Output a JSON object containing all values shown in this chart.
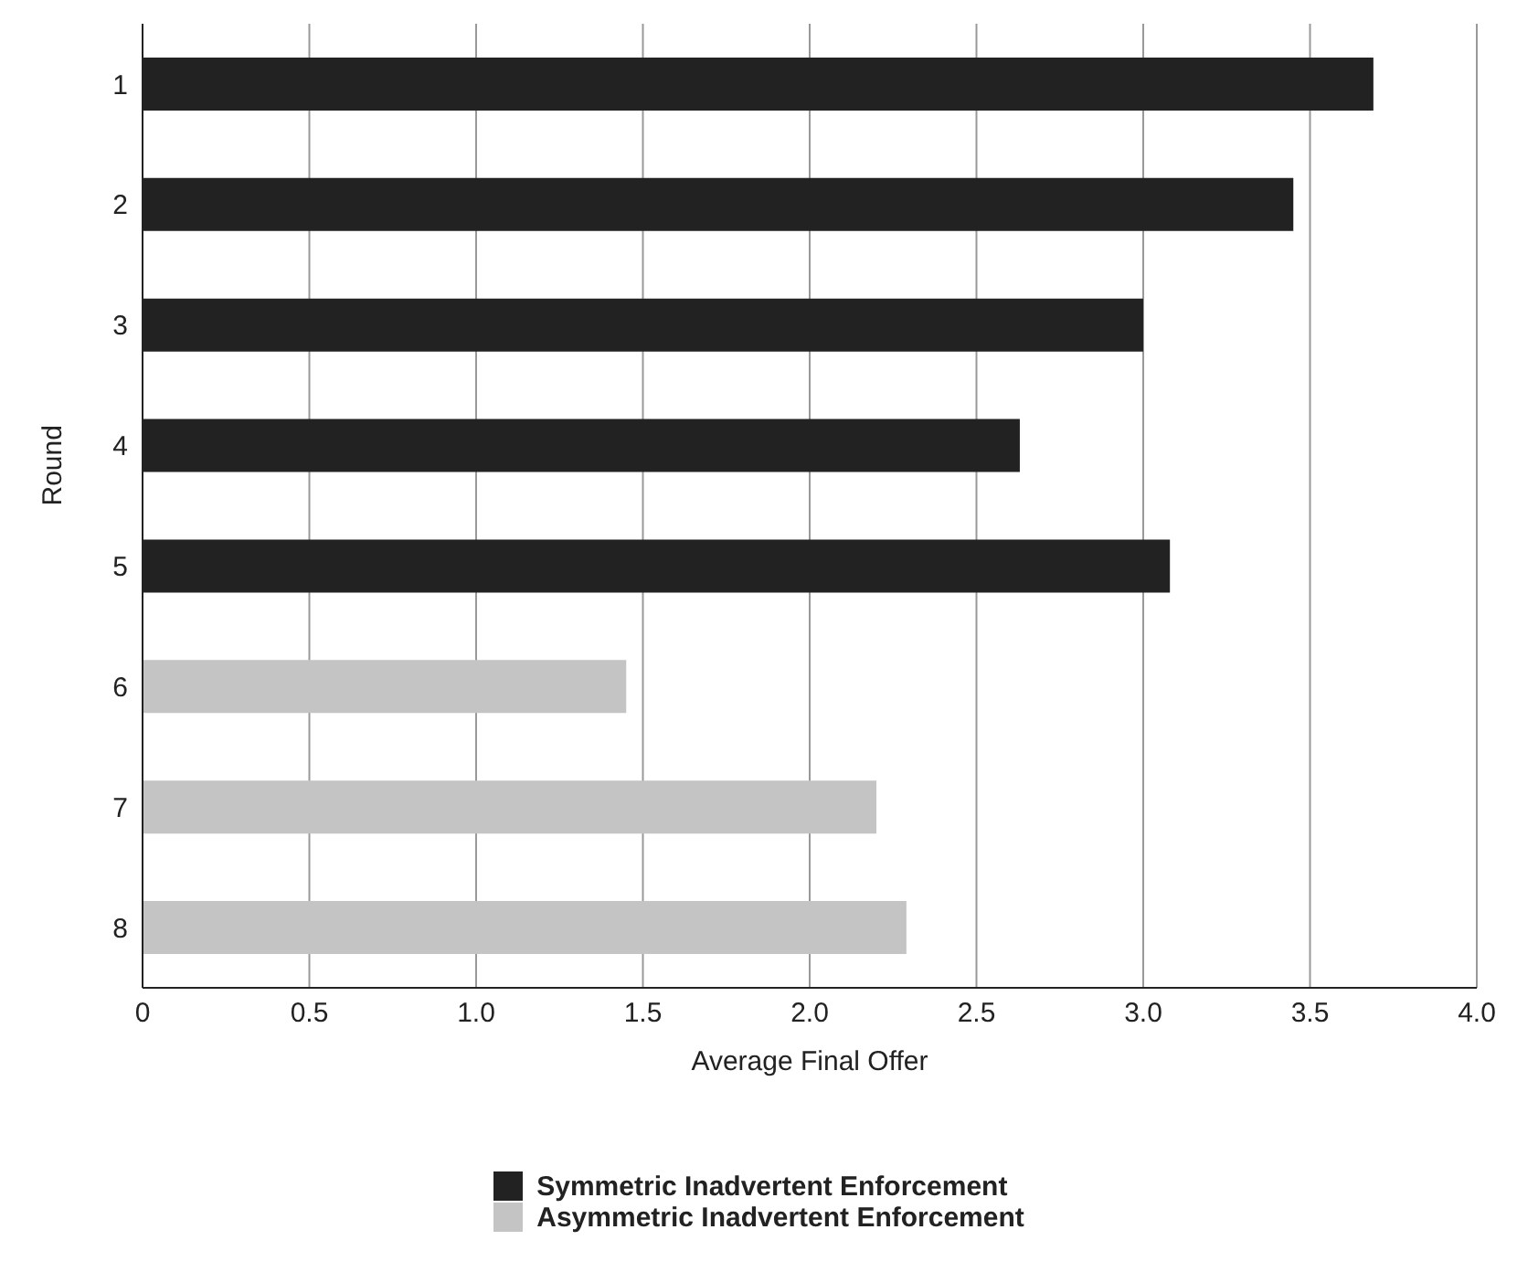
{
  "chart_data": {
    "type": "bar",
    "orientation": "horizontal",
    "stacked": true,
    "xlabel": "Average Final Offer",
    "ylabel": "Round",
    "categories": [
      "1",
      "2",
      "3",
      "4",
      "5",
      "6",
      "7",
      "8"
    ],
    "series": [
      {
        "name": "Symmetric Inadvertent Enforcement",
        "color": "#222222",
        "values": [
          3.69,
          3.45,
          3.0,
          2.63,
          3.08,
          null,
          null,
          null
        ]
      },
      {
        "name": "Asymmetric Inadvertent Enforcement",
        "color": "#c4c4c4",
        "values": [
          null,
          null,
          null,
          null,
          null,
          1.45,
          2.2,
          2.29
        ]
      }
    ],
    "xlim": [
      0,
      4.0
    ],
    "xticks": [
      0,
      0.5,
      {
        "value": 1,
        "label": "1.0"
      },
      1.5,
      {
        "value": 2,
        "label": "2.0"
      },
      2.5,
      {
        "value": 3,
        "label": "3.0"
      },
      3.5,
      {
        "value": 4,
        "label": "4.0"
      }
    ],
    "grid": "x",
    "legend": "bottom"
  }
}
